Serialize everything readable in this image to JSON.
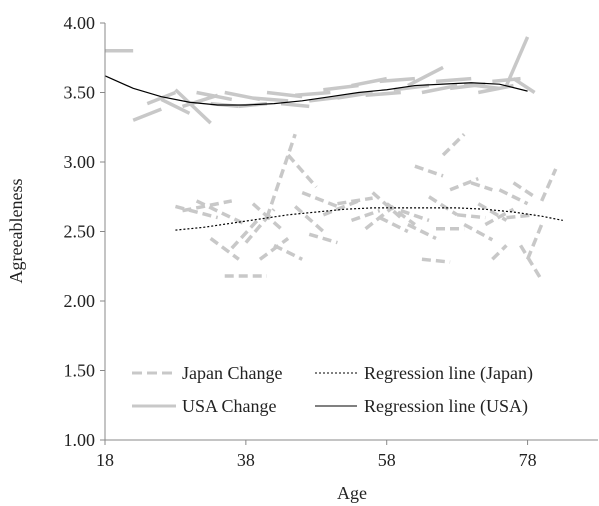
{
  "chart_data": {
    "type": "line",
    "title": "",
    "xlabel": "Age",
    "ylabel": "Agreeableness",
    "xlim": [
      18,
      88
    ],
    "ylim": [
      1.0,
      4.0
    ],
    "x_ticks": [
      18,
      38,
      58,
      78
    ],
    "y_ticks": [
      1.0,
      1.5,
      2.0,
      2.5,
      3.0,
      3.5,
      4.0
    ],
    "x_tick_labels": [
      "18",
      "38",
      "58",
      "78"
    ],
    "y_tick_labels": [
      "1.00",
      "1.50",
      "2.00",
      "2.50",
      "3.00",
      "3.50",
      "4.00"
    ],
    "grid": false,
    "legend_position": "bottom-left inside",
    "series": [
      {
        "name": "Japan Change",
        "style": "dashed",
        "color": "#c8c8c8",
        "segments": [
          [
            [
              28,
              2.68
            ],
            [
              34,
              2.6
            ]
          ],
          [
            [
              29,
              2.65
            ],
            [
              36,
              2.72
            ]
          ],
          [
            [
              31,
              2.72
            ],
            [
              38,
              2.55
            ]
          ],
          [
            [
              33,
              2.45
            ],
            [
              37,
              2.3
            ]
          ],
          [
            [
              35,
              2.18
            ],
            [
              41,
              2.18
            ]
          ],
          [
            [
              36,
              2.38
            ],
            [
              40,
              2.6
            ]
          ],
          [
            [
              38,
              2.42
            ],
            [
              42,
              2.66
            ]
          ],
          [
            [
              39,
              2.7
            ],
            [
              43,
              2.52
            ]
          ],
          [
            [
              40,
              2.3
            ],
            [
              44,
              2.45
            ]
          ],
          [
            [
              41,
              2.6
            ],
            [
              45,
              3.2
            ]
          ],
          [
            [
              42,
              2.4
            ],
            [
              46,
              2.3
            ]
          ],
          [
            [
              44,
              3.05
            ],
            [
              48,
              2.82
            ]
          ],
          [
            [
              45,
              2.68
            ],
            [
              49,
              2.5
            ]
          ],
          [
            [
              46,
              2.78
            ],
            [
              51,
              2.68
            ]
          ],
          [
            [
              47,
              2.48
            ],
            [
              51,
              2.42
            ]
          ],
          [
            [
              49,
              2.62
            ],
            [
              54,
              2.72
            ]
          ],
          [
            [
              51,
              2.7
            ],
            [
              56,
              2.74
            ]
          ],
          [
            [
              53,
              2.58
            ],
            [
              57,
              2.65
            ]
          ],
          [
            [
              55,
              2.52
            ],
            [
              59,
              2.68
            ]
          ],
          [
            [
              56,
              2.78
            ],
            [
              60,
              2.6
            ]
          ],
          [
            [
              57,
              2.6
            ],
            [
              61,
              2.5
            ]
          ],
          [
            [
              58,
              2.7
            ],
            [
              62,
              2.55
            ]
          ],
          [
            [
              60,
              2.65
            ],
            [
              64,
              2.58
            ]
          ],
          [
            [
              61,
              2.55
            ],
            [
              65,
              2.45
            ]
          ],
          [
            [
              62,
              2.97
            ],
            [
              66,
              2.9
            ]
          ],
          [
            [
              63,
              2.3
            ],
            [
              67,
              2.28
            ]
          ],
          [
            [
              64,
              2.75
            ],
            [
              68,
              2.62
            ]
          ],
          [
            [
              65,
              2.52
            ],
            [
              69,
              2.52
            ]
          ],
          [
            [
              66,
              3.05
            ],
            [
              69,
              3.2
            ]
          ],
          [
            [
              67,
              2.8
            ],
            [
              71,
              2.88
            ]
          ],
          [
            [
              68,
              2.62
            ],
            [
              72,
              2.6
            ]
          ],
          [
            [
              69,
              2.55
            ],
            [
              73,
              2.44
            ]
          ],
          [
            [
              70,
              2.85
            ],
            [
              73,
              2.8
            ]
          ],
          [
            [
              71,
              2.7
            ],
            [
              75,
              2.58
            ]
          ],
          [
            [
              72,
              2.55
            ],
            [
              76,
              2.66
            ]
          ],
          [
            [
              73,
              2.3
            ],
            [
              75,
              2.4
            ]
          ],
          [
            [
              74,
              2.8
            ],
            [
              78,
              2.7
            ]
          ],
          [
            [
              75,
              2.6
            ],
            [
              79,
              2.62
            ]
          ],
          [
            [
              76,
              2.85
            ],
            [
              79,
              2.75
            ]
          ],
          [
            [
              77,
              2.4
            ],
            [
              80,
              2.15
            ]
          ],
          [
            [
              78,
              2.3
            ],
            [
              80,
              2.55
            ]
          ],
          [
            [
              80,
              2.72
            ],
            [
              82,
              2.95
            ]
          ]
        ]
      },
      {
        "name": "USA Change",
        "style": "solid",
        "color": "#c8c8c8",
        "segments": [
          [
            [
              18,
              3.8
            ],
            [
              22,
              3.8
            ]
          ],
          [
            [
              22,
              3.3
            ],
            [
              26,
              3.38
            ]
          ],
          [
            [
              24,
              3.42
            ],
            [
              28,
              3.5
            ]
          ],
          [
            [
              26,
              3.45
            ],
            [
              30,
              3.35
            ]
          ],
          [
            [
              28,
              3.52
            ],
            [
              33,
              3.28
            ]
          ],
          [
            [
              29,
              3.4
            ],
            [
              34,
              3.48
            ]
          ],
          [
            [
              31,
              3.5
            ],
            [
              36,
              3.45
            ]
          ],
          [
            [
              33,
              3.42
            ],
            [
              37,
              3.4
            ]
          ],
          [
            [
              35,
              3.5
            ],
            [
              40,
              3.45
            ]
          ],
          [
            [
              37,
              3.4
            ],
            [
              41,
              3.42
            ]
          ],
          [
            [
              39,
              3.46
            ],
            [
              44,
              3.44
            ]
          ],
          [
            [
              41,
              3.5
            ],
            [
              46,
              3.47
            ]
          ],
          [
            [
              43,
              3.42
            ],
            [
              47,
              3.4
            ]
          ],
          [
            [
              45,
              3.48
            ],
            [
              50,
              3.5
            ]
          ],
          [
            [
              47,
              3.44
            ],
            [
              52,
              3.47
            ]
          ],
          [
            [
              49,
              3.52
            ],
            [
              54,
              3.55
            ]
          ],
          [
            [
              51,
              3.46
            ],
            [
              56,
              3.5
            ]
          ],
          [
            [
              53,
              3.55
            ],
            [
              58,
              3.6
            ]
          ],
          [
            [
              55,
              3.48
            ],
            [
              60,
              3.5
            ]
          ],
          [
            [
              57,
              3.58
            ],
            [
              62,
              3.6
            ]
          ],
          [
            [
              59,
              3.52
            ],
            [
              64,
              3.55
            ]
          ],
          [
            [
              61,
              3.55
            ],
            [
              66,
              3.68
            ]
          ],
          [
            [
              63,
              3.5
            ],
            [
              68,
              3.55
            ]
          ],
          [
            [
              65,
              3.58
            ],
            [
              70,
              3.6
            ]
          ],
          [
            [
              67,
              3.53
            ],
            [
              72,
              3.56
            ]
          ],
          [
            [
              69,
              3.56
            ],
            [
              74,
              3.53
            ]
          ],
          [
            [
              71,
              3.5
            ],
            [
              76,
              3.55
            ]
          ],
          [
            [
              73,
              3.58
            ],
            [
              77,
              3.6
            ]
          ],
          [
            [
              75,
              3.55
            ],
            [
              78,
              3.9
            ]
          ],
          [
            [
              76,
              3.6
            ],
            [
              79,
              3.5
            ]
          ]
        ]
      },
      {
        "name": "Regression line (Japan)",
        "style": "dotted",
        "color": "#000000",
        "x": [
          28,
          32,
          36,
          40,
          44,
          48,
          52,
          56,
          60,
          64,
          68,
          72,
          76,
          80,
          83
        ],
        "values": [
          2.51,
          2.53,
          2.56,
          2.59,
          2.62,
          2.64,
          2.66,
          2.67,
          2.67,
          2.67,
          2.67,
          2.66,
          2.64,
          2.61,
          2.58
        ]
      },
      {
        "name": "Regression line (USA)",
        "style": "solid",
        "color": "#000000",
        "x": [
          18,
          22,
          26,
          30,
          34,
          38,
          42,
          46,
          50,
          54,
          58,
          62,
          66,
          70,
          74,
          78
        ],
        "values": [
          3.62,
          3.53,
          3.47,
          3.43,
          3.41,
          3.41,
          3.42,
          3.44,
          3.47,
          3.5,
          3.52,
          3.55,
          3.56,
          3.57,
          3.56,
          3.51
        ]
      }
    ]
  }
}
